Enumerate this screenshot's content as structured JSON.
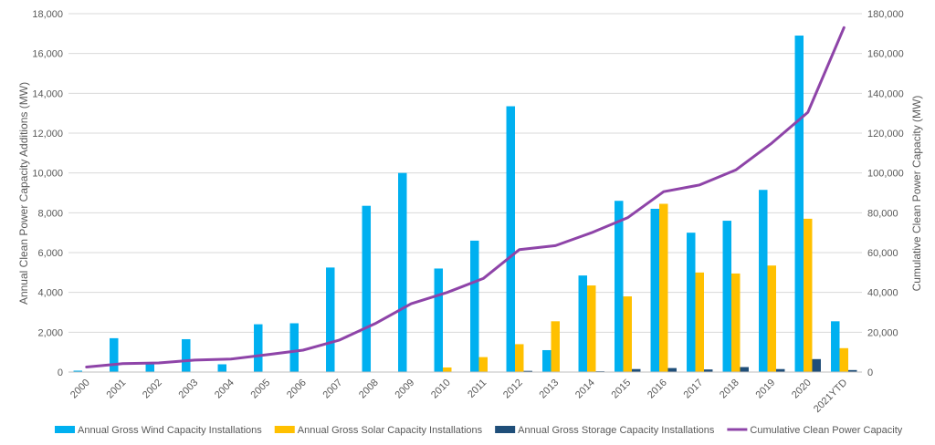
{
  "chart_data": {
    "type": "bar",
    "categories": [
      "2000",
      "2001",
      "2002",
      "2003",
      "2004",
      "2005",
      "2006",
      "2007",
      "2008",
      "2009",
      "2010",
      "2011",
      "2012",
      "2013",
      "2014",
      "2015",
      "2016",
      "2017",
      "2018",
      "2019",
      "2020",
      "2021YTD"
    ],
    "series": [
      {
        "name": "Annual Gross Wind Capacity Installations",
        "type": "bar",
        "axis": "left",
        "color": "#00b0f0",
        "values": [
          70,
          1700,
          400,
          1650,
          390,
          2400,
          2450,
          5250,
          8350,
          10000,
          5200,
          6600,
          13350,
          1100,
          4850,
          8600,
          8200,
          7000,
          7600,
          9150,
          16900,
          2550
        ]
      },
      {
        "name": "Annual Gross Solar Capacity Installations",
        "type": "bar",
        "axis": "left",
        "color": "#ffc000",
        "values": [
          0,
          0,
          0,
          0,
          0,
          0,
          0,
          0,
          0,
          0,
          230,
          750,
          1400,
          2550,
          4350,
          3800,
          8450,
          5000,
          4950,
          5350,
          7700,
          1200
        ]
      },
      {
        "name": "Annual Gross Storage Capacity Installations",
        "type": "bar",
        "axis": "left",
        "color": "#1f4e79",
        "values": [
          0,
          0,
          0,
          0,
          0,
          0,
          0,
          0,
          0,
          0,
          0,
          20,
          60,
          20,
          40,
          150,
          200,
          130,
          250,
          150,
          650,
          100
        ]
      },
      {
        "name": "Cumulative Clean Power Capacity",
        "type": "line",
        "axis": "right",
        "color": "#8e44a8",
        "values": [
          2500,
          4200,
          4600,
          6000,
          6500,
          8700,
          11000,
          16000,
          24300,
          34300,
          40000,
          47000,
          61500,
          63500,
          70000,
          77500,
          90600,
          94000,
          101500,
          115000,
          130500,
          173000
        ]
      }
    ],
    "ylabel": "Annual Clean Power Capacity Additions (MW)",
    "y2label": "Cumulative Clean Power Capacity (MW)",
    "ylim": [
      0,
      18000
    ],
    "y2lim": [
      0,
      180000
    ],
    "yticks": [
      "0",
      "2,000",
      "4,000",
      "6,000",
      "8,000",
      "10,000",
      "12,000",
      "14,000",
      "16,000",
      "18,000"
    ],
    "y2ticks": [
      "0",
      "20,000",
      "40,000",
      "60,000",
      "80,000",
      "100,000",
      "120,000",
      "140,000",
      "160,000",
      "180,000"
    ],
    "grid": true,
    "legend_position": "bottom"
  }
}
